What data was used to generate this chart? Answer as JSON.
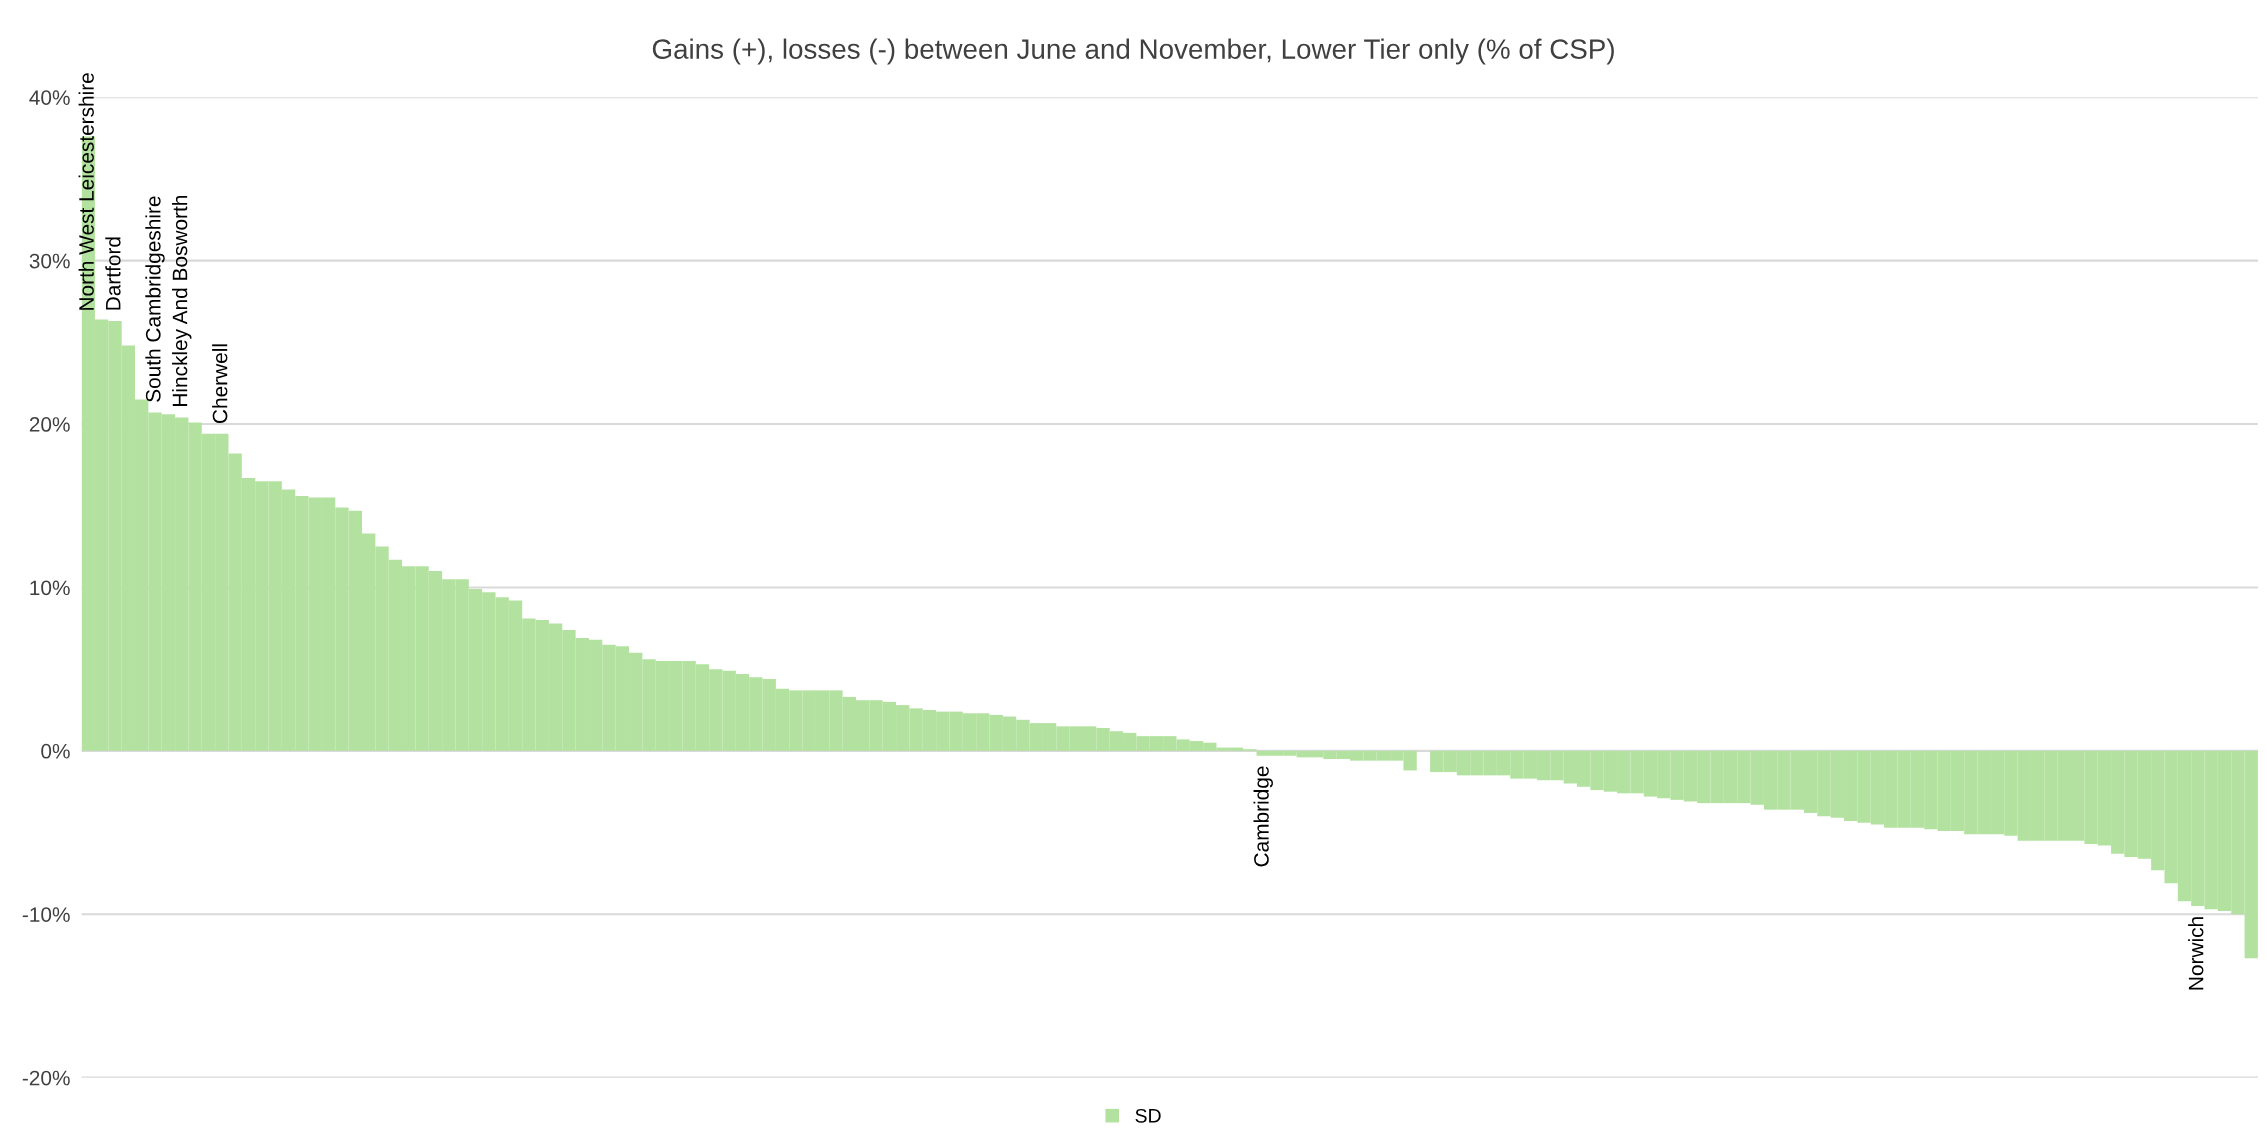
{
  "chart_data": {
    "type": "bar",
    "title": "Gains (+), losses (-) between June and November, Lower Tier only (% of CSP)",
    "categories": [
      "North West Leicestershire",
      null,
      "Dartford",
      null,
      null,
      "South Cambridgeshire",
      null,
      "Hinckley And Bosworth",
      null,
      null,
      "Cherwell",
      null,
      null,
      null,
      null,
      null,
      null,
      null,
      null,
      null,
      null,
      null,
      null,
      null,
      null,
      null,
      null,
      null,
      null,
      null,
      null,
      null,
      null,
      null,
      null,
      null,
      null,
      null,
      null,
      null,
      null,
      null,
      null,
      null,
      null,
      null,
      null,
      null,
      null,
      null,
      null,
      null,
      null,
      null,
      null,
      null,
      null,
      null,
      null,
      null,
      null,
      null,
      null,
      null,
      null,
      null,
      null,
      null,
      null,
      null,
      null,
      null,
      null,
      null,
      null,
      null,
      null,
      null,
      null,
      null,
      null,
      null,
      null,
      null,
      null,
      null,
      null,
      null,
      "Cambridge",
      null,
      null,
      null,
      null,
      null,
      null,
      null,
      null,
      null,
      null,
      null,
      null,
      null,
      null,
      null,
      null,
      null,
      null,
      null,
      null,
      null,
      null,
      null,
      null,
      null,
      null,
      null,
      null,
      null,
      null,
      null,
      null,
      null,
      null,
      null,
      null,
      null,
      null,
      null,
      null,
      null,
      null,
      null,
      null,
      null,
      null,
      null,
      null,
      null,
      null,
      null,
      null,
      null,
      null,
      null,
      null,
      null,
      null,
      null,
      null,
      null,
      null,
      null,
      null,
      null,
      null,
      null,
      null,
      null,
      "Norwich",
      null,
      null,
      null,
      null
    ],
    "series": [
      {
        "name": "SD",
        "color": "#b3e2a0",
        "values": [
          37.6,
          26.4,
          26.3,
          24.8,
          21.5,
          20.7,
          20.6,
          20.4,
          20.1,
          19.4,
          19.4,
          18.2,
          16.7,
          16.5,
          16.5,
          16.0,
          15.6,
          15.5,
          15.5,
          14.9,
          14.7,
          13.3,
          12.5,
          11.7,
          11.3,
          11.3,
          11.0,
          10.5,
          10.5,
          9.9,
          9.7,
          9.4,
          9.2,
          8.1,
          8.0,
          7.8,
          7.4,
          6.9,
          6.8,
          6.5,
          6.4,
          6.0,
          5.6,
          5.5,
          5.5,
          5.5,
          5.3,
          5.0,
          4.9,
          4.7,
          4.5,
          4.4,
          3.8,
          3.7,
          3.7,
          3.7,
          3.7,
          3.3,
          3.1,
          3.1,
          3.0,
          2.8,
          2.6,
          2.5,
          2.4,
          2.4,
          2.3,
          2.3,
          2.2,
          2.1,
          1.9,
          1.7,
          1.7,
          1.5,
          1.5,
          1.5,
          1.4,
          1.2,
          1.1,
          0.9,
          0.9,
          0.9,
          0.7,
          0.6,
          0.5,
          0.2,
          0.2,
          0.1,
          -0.3,
          -0.3,
          -0.3,
          -0.4,
          -0.4,
          -0.5,
          -0.5,
          -0.6,
          -0.6,
          -0.6,
          -0.6,
          -1.2,
          null,
          -1.3,
          -1.3,
          -1.5,
          -1.5,
          -1.5,
          -1.5,
          -1.7,
          -1.7,
          -1.8,
          -1.8,
          -2.0,
          -2.2,
          -2.4,
          -2.5,
          -2.6,
          -2.6,
          -2.8,
          -2.9,
          -3.0,
          -3.1,
          -3.2,
          -3.2,
          -3.2,
          -3.2,
          -3.3,
          -3.6,
          -3.6,
          -3.6,
          -3.8,
          -4.0,
          -4.1,
          -4.3,
          -4.4,
          -4.5,
          -4.7,
          -4.7,
          -4.7,
          -4.8,
          -4.9,
          -4.9,
          -5.1,
          -5.1,
          -5.1,
          -5.2,
          -5.5,
          -5.5,
          -5.5,
          -5.5,
          -5.5,
          -5.7,
          -5.8,
          -6.3,
          -6.5,
          -6.6,
          -7.3,
          -8.1,
          -9.2,
          -9.5,
          -9.7,
          -9.8,
          -10.0,
          -12.7
        ]
      }
    ],
    "ylim": [
      -20,
      40
    ],
    "yticks": [
      {
        "value": -20,
        "label": "-20%"
      },
      {
        "value": -10,
        "label": "-10%"
      },
      {
        "value": 0,
        "label": "0%"
      },
      {
        "value": 10,
        "label": "10%"
      },
      {
        "value": 20,
        "label": "20%"
      },
      {
        "value": 30,
        "label": "30%"
      },
      {
        "value": 40,
        "label": "40%"
      }
    ],
    "grid": "y",
    "legend": "bottom",
    "tick_labels": "y"
  }
}
